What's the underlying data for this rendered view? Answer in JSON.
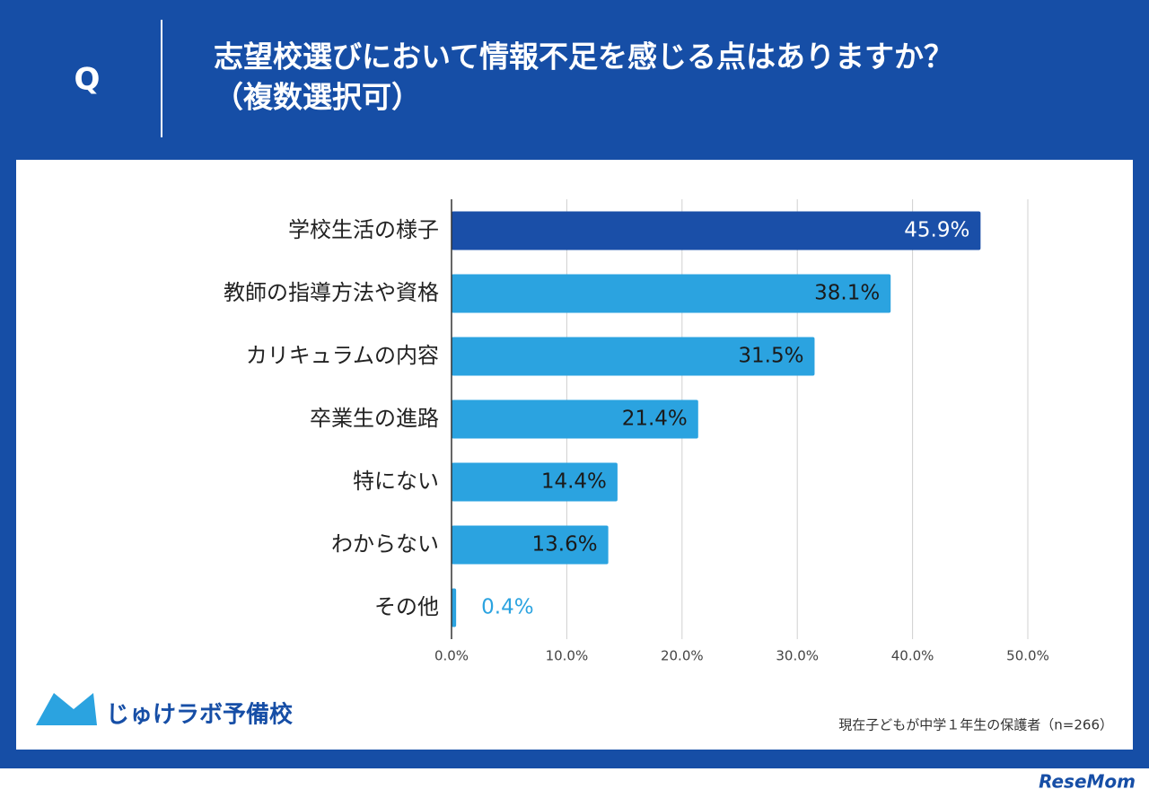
{
  "header": {
    "mark": "Q",
    "title": [
      "志望校選びにおいて情報不足を感じる点はありますか？",
      "（複数選択可）"
    ]
  },
  "chart_data": {
    "type": "bar",
    "orientation": "horizontal",
    "categories": [
      "学校生活の様子",
      "教師の指導方法や資格",
      "カリキュラムの内容",
      "卒業生の進路",
      "特にない",
      "わからない",
      "その他"
    ],
    "values": [
      45.9,
      38.1,
      31.5,
      21.4,
      14.4,
      13.6,
      0.4
    ],
    "value_labels": [
      "45.9%",
      "38.1%",
      "31.5%",
      "21.4%",
      "14.4%",
      "13.6%",
      "0.4%"
    ],
    "bar_colors": [
      "#1a4fa8",
      "#2ba3e0",
      "#2ba3e0",
      "#2ba3e0",
      "#2ba3e0",
      "#2ba3e0",
      "#2ba3e0"
    ],
    "value_label_colors": [
      "#ffffff",
      "#1a1a1a",
      "#1a1a1a",
      "#1a1a1a",
      "#1a1a1a",
      "#1a1a1a",
      "#2ba3e0"
    ],
    "xlim": [
      0,
      50
    ],
    "xticks": [
      {
        "value": 0,
        "label": "0.0%"
      },
      {
        "value": 10,
        "label": "10.0%"
      },
      {
        "value": 20,
        "label": "20.0%"
      },
      {
        "value": 30,
        "label": "30.0%"
      },
      {
        "value": 40,
        "label": "40.0%"
      },
      {
        "value": 50,
        "label": "50.0%"
      }
    ],
    "grid": true
  },
  "footer": {
    "logo": "じゅけラボ予備校",
    "note": "現在子どもが中学１年生の保護者（n=266）",
    "source": "ReseMom"
  }
}
